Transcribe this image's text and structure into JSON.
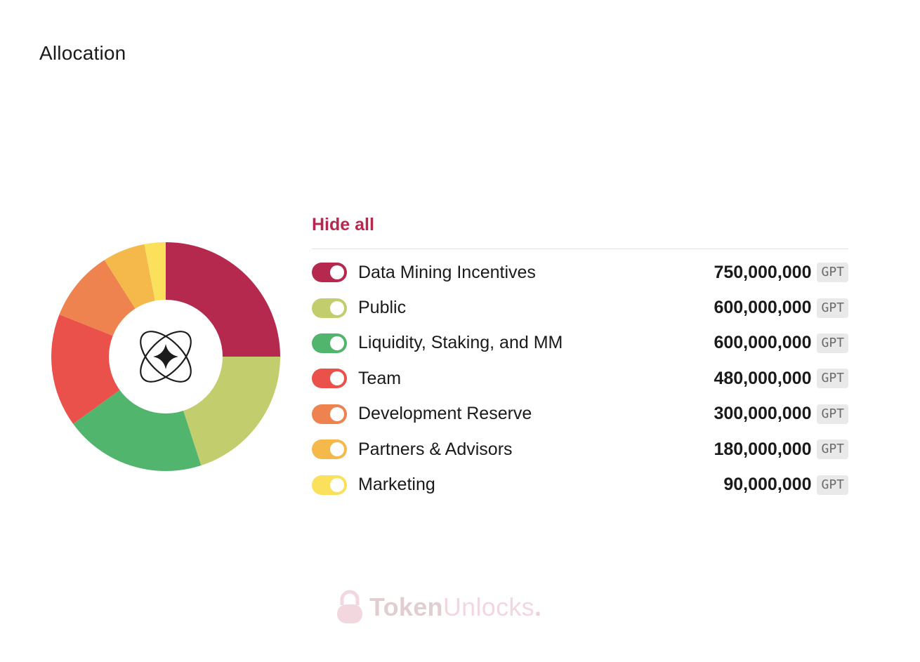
{
  "page": {
    "title": "Allocation"
  },
  "legend": {
    "hide_all_label": "Hide all"
  },
  "chart_data": {
    "type": "pie",
    "style": "donut",
    "unit": "GPT",
    "slices": [
      {
        "label": "Data Mining Incentives",
        "value": 750000000,
        "display": "750,000,000",
        "color": "#b5294f",
        "enabled": true
      },
      {
        "label": "Public",
        "value": 600000000,
        "display": "600,000,000",
        "color": "#c2cd6e",
        "enabled": true
      },
      {
        "label": "Liquidity, Staking, and MM",
        "value": 600000000,
        "display": "600,000,000",
        "color": "#52b56d",
        "enabled": true
      },
      {
        "label": "Team",
        "value": 480000000,
        "display": "480,000,000",
        "color": "#eb514b",
        "enabled": true
      },
      {
        "label": "Development Reserve",
        "value": 300000000,
        "display": "300,000,000",
        "color": "#ee834f",
        "enabled": true
      },
      {
        "label": "Partners & Advisors",
        "value": 180000000,
        "display": "180,000,000",
        "color": "#f4b94a",
        "enabled": true
      },
      {
        "label": "Marketing",
        "value": 90000000,
        "display": "90,000,000",
        "color": "#fbe05c",
        "enabled": true
      }
    ]
  },
  "center_logo": {
    "icon": "atom-sparkle-icon"
  },
  "watermark": {
    "part1": "Token",
    "part2": "Unlocks",
    "part3": ".",
    "icon": "padlock-icon"
  }
}
